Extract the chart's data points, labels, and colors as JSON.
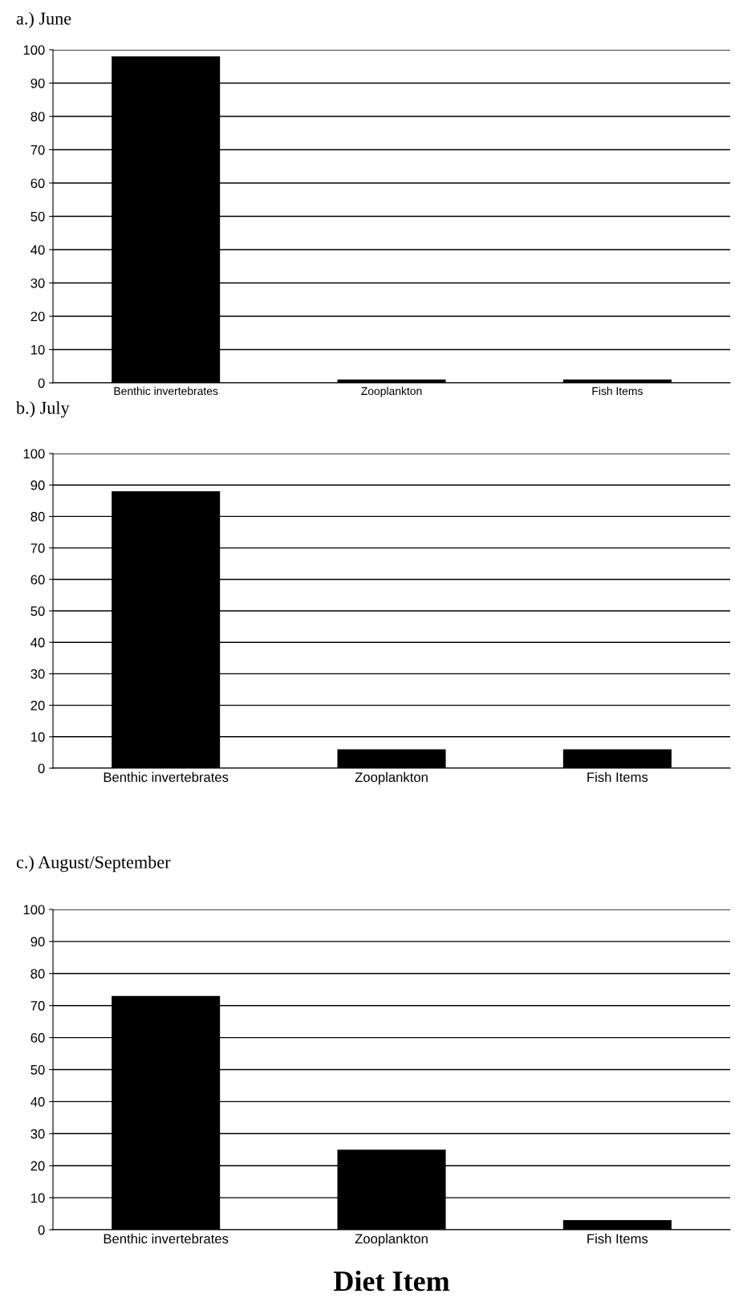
{
  "chart_data": [
    {
      "type": "bar",
      "title": "a.) June",
      "categories": [
        "Benthic invertebrates",
        "Zooplankton",
        "Fish Items"
      ],
      "values": [
        98,
        1,
        1
      ],
      "color": "#000000",
      "ylim": [
        0,
        100
      ],
      "yticks": [
        0,
        10,
        20,
        30,
        40,
        50,
        60,
        70,
        80,
        90,
        100
      ],
      "grid": "y"
    },
    {
      "type": "bar",
      "title": "b.) July",
      "categories": [
        "Benthic invertebrates",
        "Zooplankton",
        "Fish Items"
      ],
      "values": [
        88,
        6,
        6
      ],
      "color": "#000000",
      "ylim": [
        0,
        100
      ],
      "yticks": [
        0,
        10,
        20,
        30,
        40,
        50,
        60,
        70,
        80,
        90,
        100
      ],
      "grid": "y"
    },
    {
      "type": "bar",
      "title": "c.) August/September",
      "xlabel": "Diet Item",
      "categories": [
        "Benthic invertebrates",
        "Zooplankton",
        "Fish Items"
      ],
      "values": [
        73,
        25,
        3
      ],
      "color": "#000000",
      "ylim": [
        0,
        100
      ],
      "yticks": [
        0,
        10,
        20,
        30,
        40,
        50,
        60,
        70,
        80,
        90,
        100
      ],
      "grid": "y"
    }
  ]
}
